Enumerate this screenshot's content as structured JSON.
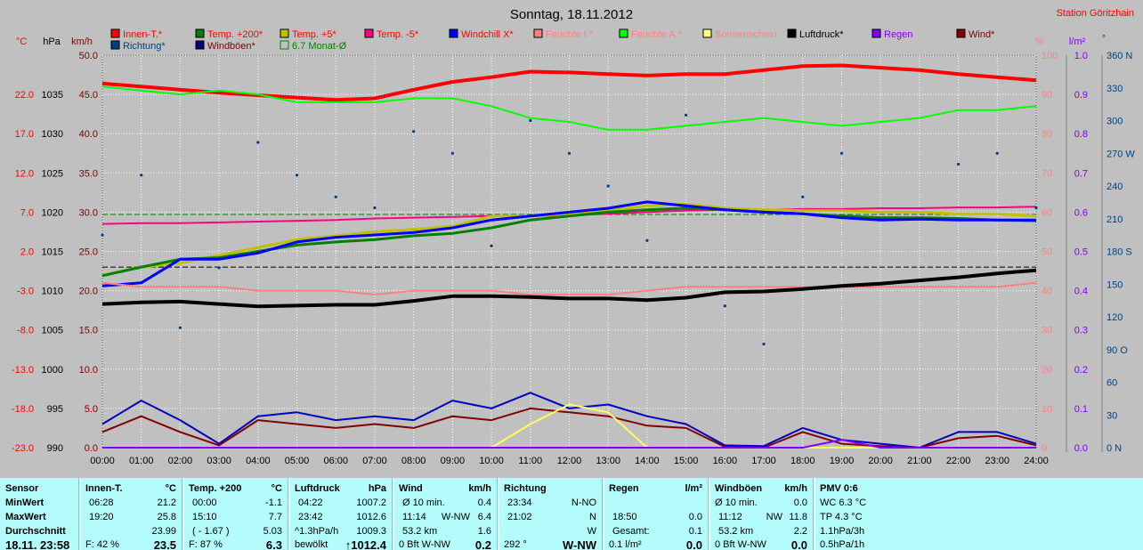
{
  "title": "Sonntag, 18.11.2012",
  "station": "Station Göritzhain",
  "legend": [
    {
      "label": "Innen-T.*",
      "color": "#ff0000",
      "text_color": "#ff0000"
    },
    {
      "label": "Temp. +200*",
      "color": "#008000",
      "text_color": "#ff0000"
    },
    {
      "label": "Temp. +5*",
      "color": "#c0c000",
      "text_color": "#ff0000"
    },
    {
      "label": "Temp. -5*",
      "color": "#ff0080",
      "text_color": "#ff0000"
    },
    {
      "label": "Windchill X*",
      "color": "#0000ff",
      "text_color": "#ff0000"
    },
    {
      "label": "Feuchte I.*",
      "color": "#ff8080",
      "text_color": "#ff8080"
    },
    {
      "label": "Feuchte A.*",
      "color": "#00ff00",
      "text_color": "#ff8080"
    },
    {
      "label": "Sonnenschein",
      "color": "#ffff80",
      "text_color": "#ff8080"
    },
    {
      "label": "Luftdruck*",
      "color": "#000000",
      "text_color": "#000000"
    },
    {
      "label": "Regen",
      "color": "#8000ff",
      "text_color": "#8000ff"
    },
    {
      "label": "Wind*",
      "color": "#800000",
      "text_color": "#800000"
    },
    {
      "label": "Richtung*",
      "color": "#004080",
      "text_color": "#004080"
    },
    {
      "label": "Windböen*",
      "color": "#000080",
      "text_color": "#800000"
    },
    {
      "label": "6.7 Monat-Ø",
      "color": "#008000",
      "text_color": "#008000",
      "hollow": true
    }
  ],
  "axis_units": {
    "temp": "°C",
    "pressure": "hPa",
    "wind": "km/h",
    "humidity": "%",
    "rain": "l/m²",
    "direction": "°"
  },
  "chart_data": {
    "type": "line",
    "x": [
      "00:00",
      "01:00",
      "02:00",
      "03:00",
      "04:00",
      "05:00",
      "06:00",
      "07:00",
      "08:00",
      "09:00",
      "10:00",
      "11:00",
      "12:00",
      "13:00",
      "14:00",
      "15:00",
      "16:00",
      "17:00",
      "18:00",
      "19:00",
      "20:00",
      "21:00",
      "22:00",
      "23:00",
      "24:00"
    ],
    "y_axes": {
      "temp": {
        "label": "°C",
        "ticks": [
          "22.0",
          "17.0",
          "12.0",
          "7.0",
          "2.0",
          "-3.0",
          "-8.0",
          "-13.0",
          "-18.0",
          "-23.0"
        ],
        "range": [
          -23,
          27
        ]
      },
      "pressure": {
        "label": "hPa",
        "ticks": [
          "1035",
          "1030",
          "1025",
          "1020",
          "1015",
          "1010",
          "1005",
          "1000",
          "995",
          "990"
        ],
        "range": [
          990,
          1040
        ]
      },
      "wind": {
        "label": "km/h",
        "ticks": [
          "50.0",
          "45.0",
          "40.0",
          "35.0",
          "30.0",
          "25.0",
          "20.0",
          "15.0",
          "10.0",
          "5.0",
          "0.0"
        ],
        "range": [
          0,
          50
        ]
      },
      "humidity": {
        "label": "%",
        "ticks": [
          "100",
          "90",
          "80",
          "70",
          "60",
          "50",
          "40",
          "30",
          "20",
          "10",
          "0"
        ],
        "range": [
          0,
          100
        ]
      },
      "rain": {
        "label": "l/m²",
        "ticks": [
          "1.0",
          "0.9",
          "0.8",
          "0.7",
          "0.6",
          "0.5",
          "0.4",
          "0.3",
          "0.2",
          "0.1",
          "0.0"
        ],
        "range": [
          0,
          1
        ]
      },
      "direction": {
        "label": "°",
        "ticks": [
          "360 N",
          "330",
          "300",
          "270 W",
          "240",
          "210",
          "180 S",
          "150",
          "120",
          "90 O",
          "60",
          "30",
          "0 N"
        ],
        "range": [
          0,
          360
        ]
      }
    },
    "grid": true,
    "series": [
      {
        "name": "Innen-T.*",
        "axis": "temp",
        "color": "#ff0000",
        "width": 4,
        "values": [
          23.4,
          23.0,
          22.6,
          22.2,
          21.9,
          21.6,
          21.3,
          21.5,
          22.6,
          23.6,
          24.2,
          24.9,
          24.8,
          24.6,
          24.4,
          24.6,
          24.6,
          25.1,
          25.6,
          25.7,
          25.4,
          25.1,
          24.6,
          24.2,
          23.8
        ]
      },
      {
        "name": "Feuchte A.*",
        "axis": "humidity",
        "color": "#00ff00",
        "width": 2,
        "values": [
          92,
          91,
          90,
          91,
          90,
          88,
          88,
          88,
          89,
          89,
          87,
          84,
          83,
          81,
          81,
          82,
          83,
          84,
          83,
          82,
          83,
          84,
          86,
          86,
          87
        ]
      },
      {
        "name": "Temp. -5*",
        "axis": "temp",
        "color": "#ff0080",
        "width": 2,
        "values": [
          5.5,
          5.6,
          5.6,
          5.7,
          5.8,
          5.9,
          6.0,
          6.2,
          6.3,
          6.4,
          6.5,
          6.5,
          6.6,
          6.8,
          7.0,
          7.2,
          7.3,
          7.3,
          7.4,
          7.4,
          7.5,
          7.5,
          7.6,
          7.6,
          7.7
        ]
      },
      {
        "name": "Temp. +5*",
        "axis": "temp",
        "color": "#c0c000",
        "width": 3,
        "values": [
          -1.0,
          0.0,
          0.5,
          1.5,
          2.5,
          3.5,
          4.0,
          4.5,
          4.8,
          5.2,
          6.5,
          6.5,
          6.8,
          7.2,
          7.8,
          8.0,
          7.5,
          7.3,
          7.2,
          7.2,
          7.0,
          7.0,
          6.8,
          6.8,
          6.5
        ]
      },
      {
        "name": "Temp. +200*",
        "axis": "temp",
        "color": "#008000",
        "width": 3,
        "values": [
          -1.1,
          0.0,
          1.0,
          1.2,
          2.0,
          2.8,
          3.2,
          3.5,
          4.0,
          4.3,
          5.0,
          6.0,
          6.5,
          7.0,
          7.3,
          7.5,
          7.3,
          7.0,
          6.8,
          6.5,
          6.3,
          6.3,
          6.2,
          6.0,
          5.9
        ]
      },
      {
        "name": "Windchill X*",
        "axis": "temp",
        "color": "#0000ff",
        "width": 3,
        "values": [
          -2.4,
          -2.0,
          1.0,
          1.0,
          1.8,
          3.2,
          3.8,
          4.1,
          4.4,
          5.0,
          6.0,
          6.5,
          7.0,
          7.5,
          8.3,
          7.8,
          7.3,
          7.0,
          6.8,
          6.3,
          6.0,
          6.1,
          6.0,
          6.0,
          6.0
        ]
      },
      {
        "name": "Feuchte I.*",
        "axis": "humidity",
        "color": "#ff8080",
        "width": 2,
        "values": [
          42,
          41,
          41,
          41,
          40,
          40,
          40,
          39,
          40,
          40,
          40,
          39,
          39,
          39,
          40,
          41,
          41,
          41,
          41,
          41,
          41,
          41,
          41,
          41,
          42
        ]
      },
      {
        "name": "Luftdruck*",
        "axis": "pressure",
        "color": "#000000",
        "width": 4,
        "values": [
          1008.3,
          1008.5,
          1008.6,
          1008.3,
          1008.0,
          1008.1,
          1008.2,
          1008.2,
          1008.7,
          1009.3,
          1009.3,
          1009.2,
          1009.0,
          1009.0,
          1008.8,
          1009.1,
          1009.8,
          1009.9,
          1010.2,
          1010.6,
          1010.9,
          1011.3,
          1011.7,
          1012.2,
          1012.6
        ]
      },
      {
        "name": "Windböen*",
        "axis": "wind",
        "color": "#0000c0",
        "width": 2,
        "values": [
          3.0,
          6.0,
          3.5,
          0.5,
          4.0,
          4.5,
          3.5,
          4.0,
          3.5,
          6.0,
          5.0,
          7.0,
          5.0,
          5.5,
          4.0,
          3.0,
          0.3,
          0.2,
          2.5,
          1.0,
          0.5,
          0.0,
          2.0,
          2.0,
          0.5
        ]
      },
      {
        "name": "Wind*",
        "axis": "wind",
        "color": "#800000",
        "width": 2,
        "values": [
          2.0,
          4.0,
          2.0,
          0.3,
          3.5,
          3.0,
          2.5,
          3.0,
          2.5,
          4.0,
          3.5,
          5.0,
          4.5,
          4.0,
          2.8,
          2.5,
          0.1,
          0.0,
          2.0,
          0.5,
          0.2,
          0.0,
          1.2,
          1.5,
          0.3
        ]
      },
      {
        "name": "Sonnenschein",
        "axis": "wind",
        "color": "#ffff60",
        "width": 2,
        "values": [
          0,
          0,
          0,
          0,
          0,
          0,
          0,
          0,
          0,
          0,
          0,
          3.0,
          5.5,
          4.5,
          0,
          0,
          0,
          0,
          0,
          0,
          0,
          0,
          0,
          0,
          0
        ]
      },
      {
        "name": "Regen",
        "axis": "rain",
        "color": "#8000ff",
        "width": 2,
        "values": [
          0,
          0,
          0,
          0,
          0,
          0,
          0,
          0,
          0,
          0,
          0,
          0,
          0,
          0,
          0,
          0,
          0,
          0,
          0,
          0.02,
          0,
          0,
          0,
          0,
          0
        ]
      },
      {
        "name": "Richtung*",
        "axis": "direction",
        "type": "scatter",
        "color": "#004080",
        "values": [
          195,
          250,
          110,
          165,
          280,
          250,
          230,
          220,
          290,
          270,
          185,
          300,
          270,
          240,
          190,
          305,
          130,
          95,
          230,
          270,
          null,
          null,
          260,
          270,
          220
        ]
      }
    ],
    "reference_lines": [
      {
        "name": "6.7 Monat-Ø",
        "axis": "temp",
        "value": 6.7,
        "color": "#008000",
        "dash": true
      },
      {
        "axis": "temp",
        "value": 0.0,
        "color": "#000000",
        "dash": true
      }
    ]
  },
  "stats": {
    "sensor": {
      "header": "Sensor",
      "rows": [
        "MinWert",
        "MaxWert",
        "Durchschnitt"
      ],
      "date": "18.11. 23:58"
    },
    "innen": {
      "header": "Innen-T.",
      "unit": "°C",
      "rows": [
        [
          "06:28",
          "21.2"
        ],
        [
          "19:20",
          "25.8"
        ],
        [
          "",
          "23.99"
        ]
      ],
      "footer_l": "F: 42 %",
      "footer_r": "23.5"
    },
    "temp200": {
      "header": "Temp. +200",
      "unit": "°C",
      "rows": [
        [
          "00:00",
          "-1.1"
        ],
        [
          "15:10",
          "7.7"
        ],
        [
          "( - 1.67 )",
          "5.03"
        ]
      ],
      "footer_l": "F: 87 %",
      "footer_r": "6.3"
    },
    "luftdruck": {
      "header": "Luftdruck",
      "unit": "hPa",
      "rows": [
        [
          "04:22",
          "1007.2"
        ],
        [
          "23:42",
          "1012.6"
        ],
        [
          "^1.3hPa/h",
          "1009.3"
        ]
      ],
      "footer_l": "bewölkt",
      "footer_r": "↑1012.4"
    },
    "wind": {
      "header": "Wind",
      "unit": "km/h",
      "rows": [
        [
          "Ø 10 min.",
          "",
          "0.4"
        ],
        [
          "11:14",
          "W-NW",
          "6.4"
        ],
        [
          "53.2 km",
          "",
          "1.6"
        ]
      ],
      "footer_l": "0 Bft W-NW",
      "footer_r": "0.2"
    },
    "richtung": {
      "header": "Richtung",
      "rows": [
        [
          "23:34",
          "N-NO"
        ],
        [
          "21:02",
          "N"
        ],
        [
          "",
          "W"
        ]
      ],
      "footer_l": "292 °",
      "footer_r": "W-NW"
    },
    "regen": {
      "header": "Regen",
      "unit": "l/m²",
      "rows": [
        [
          "",
          ""
        ],
        [
          "18:50",
          "0.0"
        ],
        [
          "Gesamt:",
          "0.1"
        ]
      ],
      "footer_l": "0.1 l/m²",
      "footer_r": "0.0"
    },
    "windboeen": {
      "header": "Windböen",
      "unit": "km/h",
      "rows": [
        [
          "Ø 10 min.",
          "",
          "0.0"
        ],
        [
          "11:12",
          "NW",
          "11.8"
        ],
        [
          "53.2 km",
          "",
          "2.2"
        ]
      ],
      "footer_l": "0 Bft W-NW",
      "footer_r": "0.0"
    },
    "pmv": {
      "header": "PMV 0:6",
      "rows": [
        "WC 6.3 °C",
        "TP 4.3 °C",
        "1.1hPa/3h"
      ],
      "footer": "0.5hPa/1h"
    }
  }
}
